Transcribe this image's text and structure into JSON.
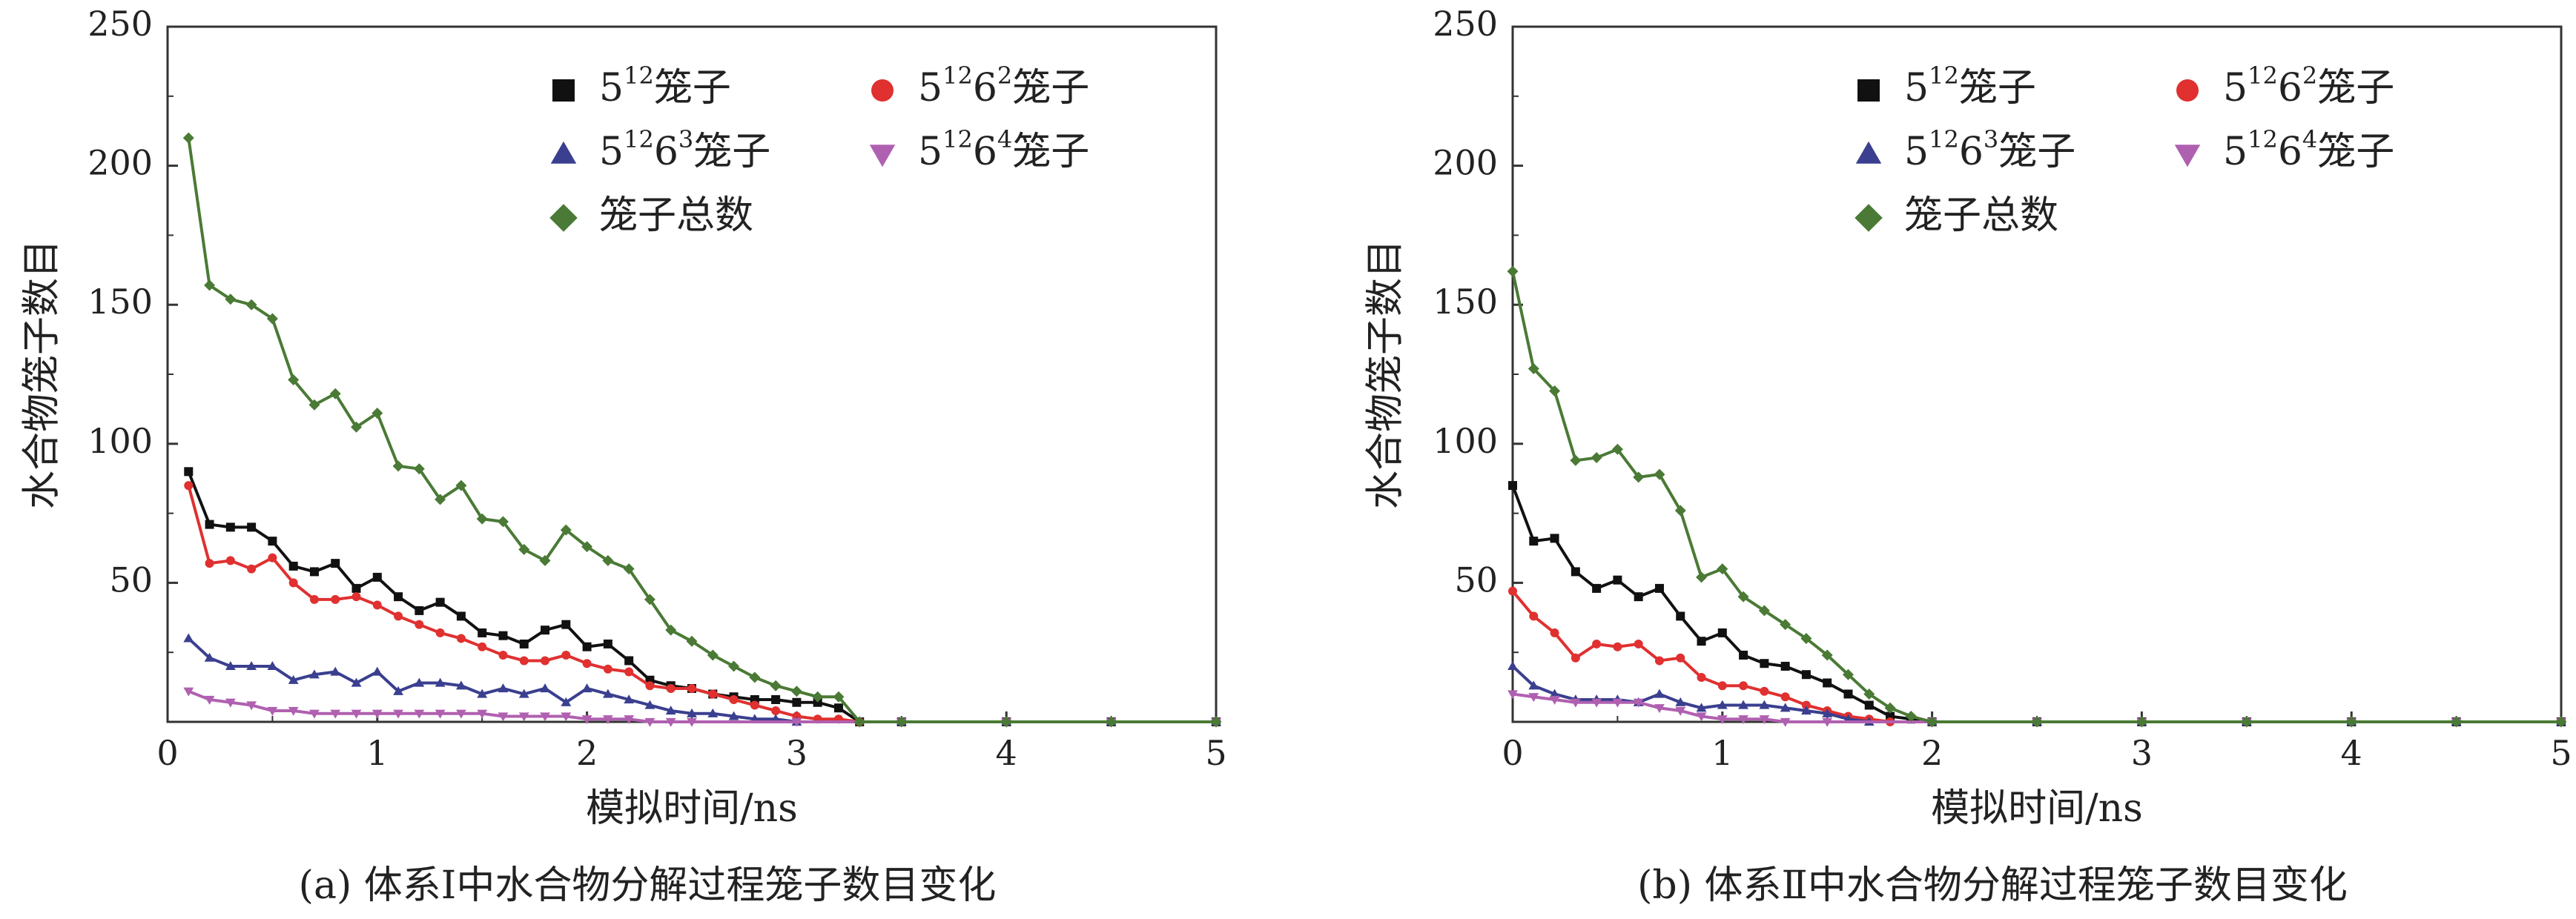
{
  "chart_data": [
    {
      "type": "line",
      "caption": "(a) 体系Ⅰ中水合物分解过程笼子数目变化",
      "xlabel": "模拟时间/ns",
      "ylabel": "水合物笼子数目",
      "xlim": [
        0,
        5
      ],
      "ylim": [
        0,
        250
      ],
      "xticks": [
        "0",
        "1",
        "2",
        "3",
        "4",
        "5"
      ],
      "yticks": [
        "50",
        "100",
        "150",
        "200",
        "250"
      ],
      "legend_position": "top-right",
      "series": [
        {
          "name_base": "5",
          "name_sup": "12",
          "name_mid": "",
          "name_mid_sup": "",
          "name_suffix": "笼子",
          "color": "#111111",
          "marker": "square",
          "x": [
            0.1,
            0.2,
            0.3,
            0.4,
            0.5,
            0.6,
            0.7,
            0.8,
            0.9,
            1.0,
            1.1,
            1.2,
            1.3,
            1.4,
            1.5,
            1.6,
            1.7,
            1.8,
            1.9,
            2.0,
            2.1,
            2.2,
            2.3,
            2.4,
            2.5,
            2.6,
            2.7,
            2.8,
            2.9,
            3.0,
            3.1,
            3.2,
            3.3,
            3.5,
            4.0,
            4.5,
            5.0
          ],
          "y": [
            90,
            71,
            70,
            70,
            65,
            56,
            54,
            57,
            48,
            52,
            45,
            40,
            43,
            38,
            32,
            31,
            28,
            33,
            35,
            27,
            28,
            22,
            15,
            13,
            12,
            10,
            9,
            8,
            8,
            7,
            7,
            5,
            0,
            0,
            0,
            0,
            0
          ]
        },
        {
          "name_base": "5",
          "name_sup": "12",
          "name_mid": "6",
          "name_mid_sup": "2",
          "name_suffix": "笼子",
          "color": "#e03030",
          "marker": "circle",
          "x": [
            0.1,
            0.2,
            0.3,
            0.4,
            0.5,
            0.6,
            0.7,
            0.8,
            0.9,
            1.0,
            1.1,
            1.2,
            1.3,
            1.4,
            1.5,
            1.6,
            1.7,
            1.8,
            1.9,
            2.0,
            2.1,
            2.2,
            2.3,
            2.4,
            2.5,
            2.6,
            2.7,
            2.8,
            2.9,
            3.0,
            3.1,
            3.2,
            3.3,
            3.5,
            4.0,
            4.5,
            5.0
          ],
          "y": [
            85,
            57,
            58,
            55,
            59,
            50,
            44,
            44,
            45,
            42,
            38,
            35,
            32,
            30,
            27,
            24,
            22,
            22,
            24,
            21,
            19,
            18,
            13,
            12,
            12,
            10,
            8,
            6,
            4,
            2,
            1,
            1,
            0,
            0,
            0,
            0,
            0
          ]
        },
        {
          "name_base": "5",
          "name_sup": "12",
          "name_mid": "6",
          "name_mid_sup": "3",
          "name_suffix": "笼子",
          "color": "#3a3f8f",
          "marker": "triangle-up",
          "x": [
            0.1,
            0.2,
            0.3,
            0.4,
            0.5,
            0.6,
            0.7,
            0.8,
            0.9,
            1.0,
            1.1,
            1.2,
            1.3,
            1.4,
            1.5,
            1.6,
            1.7,
            1.8,
            1.9,
            2.0,
            2.1,
            2.2,
            2.3,
            2.4,
            2.5,
            2.6,
            2.7,
            2.8,
            2.9,
            3.0,
            3.5,
            4.0,
            4.5,
            5.0
          ],
          "y": [
            30,
            23,
            20,
            20,
            20,
            15,
            17,
            18,
            14,
            18,
            11,
            14,
            14,
            13,
            10,
            12,
            10,
            12,
            7,
            12,
            10,
            8,
            6,
            4,
            3,
            3,
            2,
            1,
            1,
            0,
            0,
            0,
            0,
            0
          ]
        },
        {
          "name_base": "5",
          "name_sup": "12",
          "name_mid": "6",
          "name_mid_sup": "4",
          "name_suffix": "笼子",
          "color": "#b060b0",
          "marker": "triangle-down",
          "x": [
            0.1,
            0.2,
            0.3,
            0.4,
            0.5,
            0.6,
            0.7,
            0.8,
            0.9,
            1.0,
            1.1,
            1.2,
            1.3,
            1.4,
            1.5,
            1.6,
            1.7,
            1.8,
            1.9,
            2.0,
            2.1,
            2.2,
            2.3,
            2.4,
            2.5,
            3.0,
            3.5,
            4.0,
            4.5,
            5.0
          ],
          "y": [
            11,
            8,
            7,
            6,
            4,
            4,
            3,
            3,
            3,
            3,
            3,
            3,
            3,
            3,
            3,
            2,
            2,
            2,
            2,
            1,
            1,
            1,
            0,
            0,
            0,
            0,
            0,
            0,
            0,
            0
          ]
        },
        {
          "name_base": "",
          "name_sup": "",
          "name_mid": "",
          "name_mid_sup": "",
          "name_suffix": "笼子总数",
          "color": "#4a7a35",
          "marker": "diamond",
          "x": [
            0.1,
            0.2,
            0.3,
            0.4,
            0.5,
            0.6,
            0.7,
            0.8,
            0.9,
            1.0,
            1.1,
            1.2,
            1.3,
            1.4,
            1.5,
            1.6,
            1.7,
            1.8,
            1.9,
            2.0,
            2.1,
            2.2,
            2.3,
            2.4,
            2.5,
            2.6,
            2.7,
            2.8,
            2.9,
            3.0,
            3.1,
            3.2,
            3.3,
            3.5,
            4.0,
            4.5,
            5.0
          ],
          "y": [
            210,
            157,
            152,
            150,
            145,
            123,
            114,
            118,
            106,
            111,
            92,
            91,
            80,
            85,
            73,
            72,
            62,
            58,
            69,
            63,
            58,
            55,
            44,
            33,
            29,
            24,
            20,
            16,
            13,
            11,
            9,
            9,
            0,
            0,
            0,
            0,
            0
          ]
        }
      ]
    },
    {
      "type": "line",
      "caption": "(b) 体系Ⅱ中水合物分解过程笼子数目变化",
      "xlabel": "模拟时间/ns",
      "ylabel": "水合物笼子数目",
      "xlim": [
        0,
        5
      ],
      "ylim": [
        0,
        250
      ],
      "xticks": [
        "0",
        "1",
        "2",
        "3",
        "4",
        "5"
      ],
      "yticks": [
        "50",
        "100",
        "150",
        "200",
        "250"
      ],
      "legend_position": "top-right",
      "series": [
        {
          "name_base": "5",
          "name_sup": "12",
          "name_mid": "",
          "name_mid_sup": "",
          "name_suffix": "笼子",
          "color": "#111111",
          "marker": "square",
          "x": [
            0.0,
            0.1,
            0.2,
            0.3,
            0.4,
            0.5,
            0.6,
            0.7,
            0.8,
            0.9,
            1.0,
            1.1,
            1.2,
            1.3,
            1.4,
            1.5,
            1.6,
            1.7,
            1.8,
            1.9,
            2.0,
            2.5,
            3.0,
            3.5,
            4.0,
            4.5,
            5.0
          ],
          "y": [
            85,
            65,
            66,
            54,
            48,
            51,
            45,
            48,
            38,
            29,
            32,
            24,
            21,
            20,
            17,
            14,
            10,
            6,
            2,
            1,
            0,
            0,
            0,
            0,
            0,
            0,
            0
          ]
        },
        {
          "name_base": "5",
          "name_sup": "12",
          "name_mid": "6",
          "name_mid_sup": "2",
          "name_suffix": "笼子",
          "color": "#e03030",
          "marker": "circle",
          "x": [
            0.0,
            0.1,
            0.2,
            0.3,
            0.4,
            0.5,
            0.6,
            0.7,
            0.8,
            0.9,
            1.0,
            1.1,
            1.2,
            1.3,
            1.4,
            1.5,
            1.6,
            1.7,
            1.8,
            2.0,
            2.5,
            3.0,
            3.5,
            4.0,
            4.5,
            5.0
          ],
          "y": [
            47,
            38,
            32,
            23,
            28,
            27,
            28,
            22,
            23,
            16,
            13,
            13,
            11,
            9,
            6,
            4,
            2,
            1,
            0,
            0,
            0,
            0,
            0,
            0,
            0,
            0
          ]
        },
        {
          "name_base": "5",
          "name_sup": "12",
          "name_mid": "6",
          "name_mid_sup": "3",
          "name_suffix": "笼子",
          "color": "#3a3f8f",
          "marker": "triangle-up",
          "x": [
            0.0,
            0.1,
            0.2,
            0.3,
            0.4,
            0.5,
            0.6,
            0.7,
            0.8,
            0.9,
            1.0,
            1.1,
            1.2,
            1.3,
            1.4,
            1.5,
            1.6,
            1.7,
            2.0,
            2.5,
            3.0,
            3.5,
            4.0,
            4.5,
            5.0
          ],
          "y": [
            20,
            13,
            10,
            8,
            8,
            8,
            7,
            10,
            7,
            5,
            6,
            6,
            6,
            5,
            4,
            3,
            1,
            0,
            0,
            0,
            0,
            0,
            0,
            0,
            0
          ]
        },
        {
          "name_base": "5",
          "name_sup": "12",
          "name_mid": "6",
          "name_mid_sup": "4",
          "name_suffix": "笼子",
          "color": "#b060b0",
          "marker": "triangle-down",
          "x": [
            0.0,
            0.1,
            0.2,
            0.3,
            0.4,
            0.5,
            0.6,
            0.7,
            0.8,
            0.9,
            1.0,
            1.1,
            1.2,
            1.3,
            1.5,
            2.0,
            2.5,
            3.0,
            3.5,
            4.0,
            4.5,
            5.0
          ],
          "y": [
            10,
            9,
            8,
            7,
            7,
            7,
            7,
            5,
            4,
            2,
            1,
            1,
            1,
            0,
            0,
            0,
            0,
            0,
            0,
            0,
            0,
            0
          ]
        },
        {
          "name_base": "",
          "name_sup": "",
          "name_mid": "",
          "name_mid_sup": "",
          "name_suffix": "笼子总数",
          "color": "#4a7a35",
          "marker": "diamond",
          "x": [
            0.0,
            0.1,
            0.2,
            0.3,
            0.4,
            0.5,
            0.6,
            0.7,
            0.8,
            0.9,
            1.0,
            1.1,
            1.2,
            1.3,
            1.4,
            1.5,
            1.6,
            1.7,
            1.8,
            1.9,
            2.0,
            2.5,
            3.0,
            3.5,
            4.0,
            4.5,
            5.0
          ],
          "y": [
            162,
            127,
            119,
            94,
            95,
            98,
            88,
            89,
            76,
            52,
            55,
            45,
            40,
            35,
            30,
            24,
            17,
            10,
            5,
            2,
            0,
            0,
            0,
            0,
            0,
            0,
            0
          ]
        }
      ]
    }
  ]
}
